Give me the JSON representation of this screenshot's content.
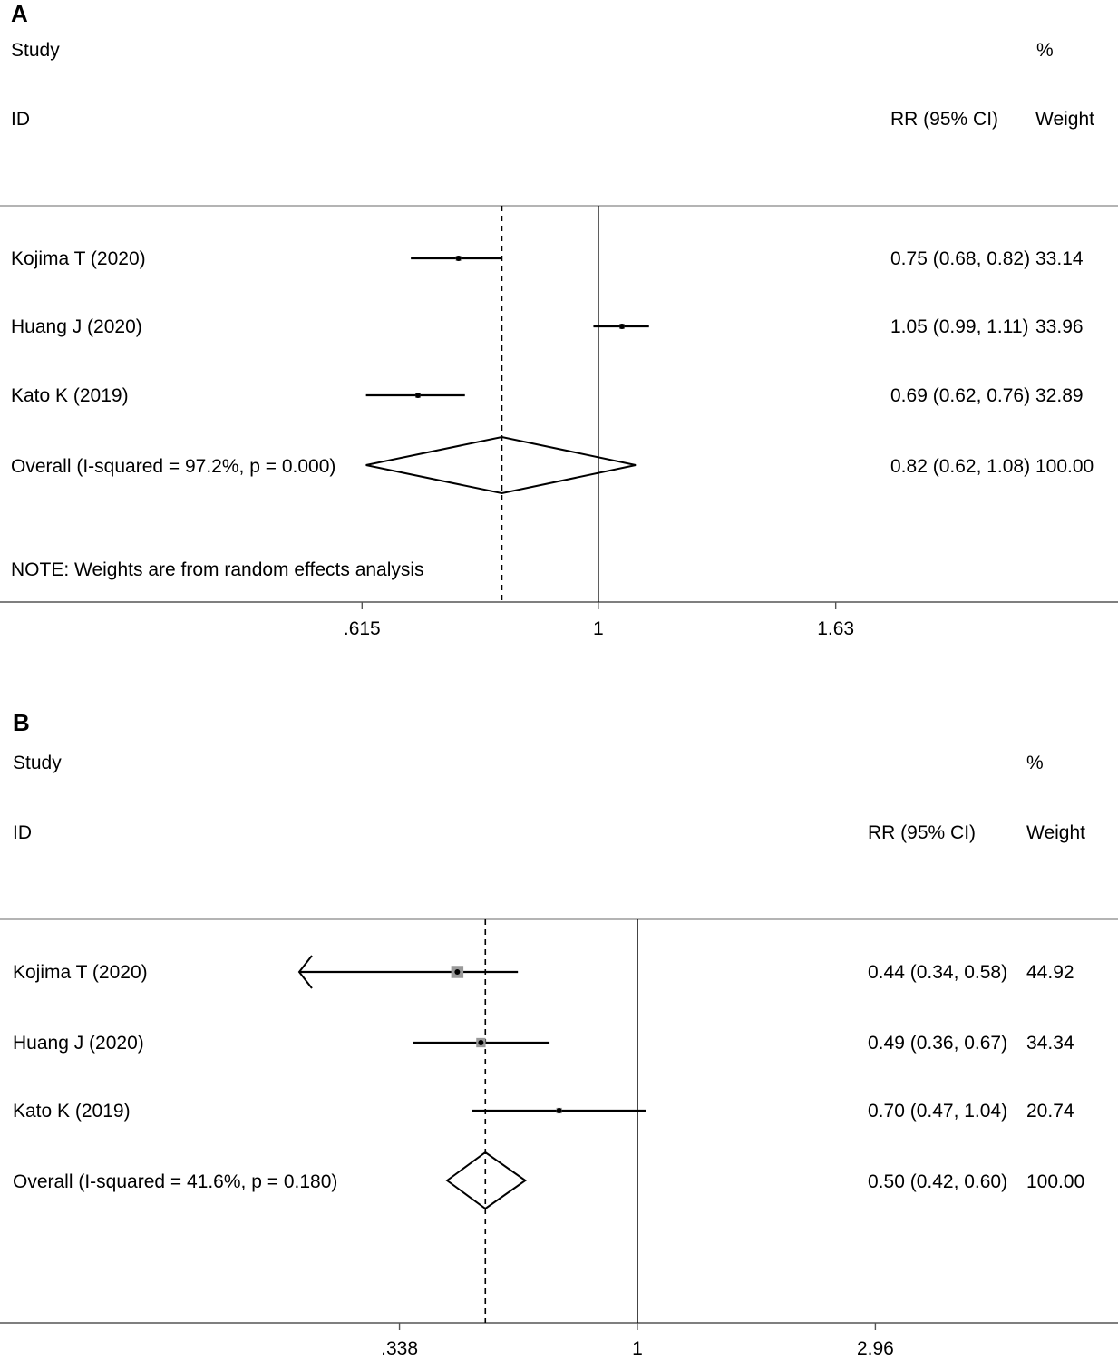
{
  "chart_data": [
    {
      "panel": "A",
      "type": "forest",
      "header": {
        "study": "Study",
        "id": "ID",
        "percent": "%",
        "effect": "RR (95% CI)",
        "weight": "Weight"
      },
      "studies": [
        {
          "label": "Kojima T (2020)",
          "rr": 0.75,
          "lo": 0.68,
          "hi": 0.82,
          "ci_text": "0.75 (0.68, 0.82)",
          "weight": "33.14"
        },
        {
          "label": "Huang J (2020)",
          "rr": 1.05,
          "lo": 0.99,
          "hi": 1.11,
          "ci_text": "1.05 (0.99, 1.11)",
          "weight": "33.96"
        },
        {
          "label": "Kato K (2019)",
          "rr": 0.69,
          "lo": 0.62,
          "hi": 0.76,
          "ci_text": "0.69 (0.62, 0.76)",
          "weight": "32.89"
        }
      ],
      "overall": {
        "label": "Overall  (I-squared = 97.2%, p = 0.000)",
        "rr": 0.82,
        "lo": 0.62,
        "hi": 1.08,
        "ci_text": "0.82 (0.62, 1.08)",
        "weight": "100.00"
      },
      "note": "NOTE: Weights are from random effects analysis",
      "scale": "log",
      "xlim": [
        0.424,
        2.36
      ],
      "ticks": [
        {
          "value": 0.615,
          "label": ".615"
        },
        {
          "value": 1,
          "label": "1"
        },
        {
          "value": 1.63,
          "label": "1.63"
        }
      ],
      "null_line": 1,
      "summary_line": 0.82
    },
    {
      "panel": "B",
      "type": "forest",
      "header": {
        "study": "Study",
        "id": "ID",
        "percent": "%",
        "effect": "RR (95% CI)",
        "weight": "Weight"
      },
      "studies": [
        {
          "label": "Kojima T (2020)",
          "rr": 0.44,
          "lo": 0.34,
          "hi": 0.58,
          "ci_text": "0.44 (0.34, 0.58)",
          "weight": "44.92",
          "arrow_left": true
        },
        {
          "label": "Huang J (2020)",
          "rr": 0.49,
          "lo": 0.36,
          "hi": 0.67,
          "ci_text": "0.49 (0.36, 0.67)",
          "weight": "34.34"
        },
        {
          "label": "Kato K (2019)",
          "rr": 0.7,
          "lo": 0.47,
          "hi": 1.04,
          "ci_text": "0.70 (0.47, 1.04)",
          "weight": "20.74"
        }
      ],
      "overall": {
        "label": "Overall  (I-squared = 41.6%, p = 0.180)",
        "rr": 0.5,
        "lo": 0.42,
        "hi": 0.6,
        "ci_text": "0.50 (0.42, 0.60)",
        "weight": "100.00"
      },
      "note": "",
      "scale": "log",
      "xlim": [
        0.0594,
        9.6
      ],
      "ticks": [
        {
          "value": 0.338,
          "label": ".338"
        },
        {
          "value": 1,
          "label": "1"
        },
        {
          "value": 2.96,
          "label": "2.96"
        }
      ],
      "null_line": 1,
      "summary_line": 0.5
    }
  ]
}
